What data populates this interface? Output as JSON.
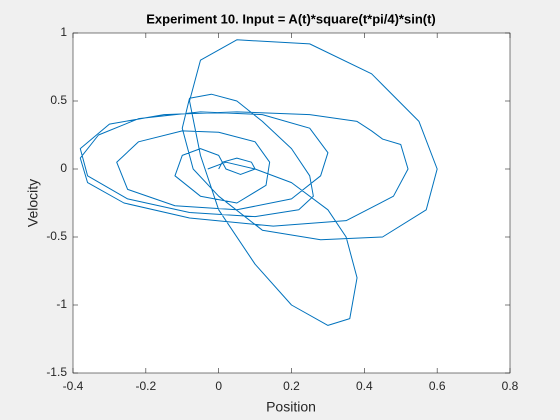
{
  "chart_data": {
    "type": "line",
    "title": "Experiment 10. Input = A(t)*square(t*pi/4)*sin(t)",
    "xlabel": "Position",
    "ylabel": "Velocity",
    "color": "#0072bd",
    "xlim": [
      -0.4,
      0.8
    ],
    "xticks": [
      -0.4,
      -0.2,
      0,
      0.2,
      0.4,
      0.6,
      0.8
    ],
    "ylim": [
      -1.5,
      1
    ],
    "yticks": [
      -1.5,
      -1,
      -0.5,
      0,
      0.5,
      1
    ],
    "x": [
      0,
      0.01,
      0.05,
      0.09,
      0.1,
      0.06,
      0.02,
      0,
      -0.05,
      -0.1,
      -0.12,
      -0.05,
      0.05,
      0.13,
      0.14,
      0.1,
      0.0,
      -0.1,
      -0.22,
      -0.28,
      -0.25,
      -0.12,
      0.05,
      0.2,
      0.28,
      0.3,
      0.25,
      0.12,
      -0.05,
      -0.22,
      -0.33,
      -0.38,
      -0.36,
      -0.26,
      -0.08,
      0.15,
      0.35,
      0.48,
      0.52,
      0.5,
      0.45,
      0.42,
      0.38,
      0.25,
      0.05,
      -0.15,
      -0.3,
      -0.38,
      -0.36,
      -0.25,
      -0.08,
      0.1,
      0.22,
      0.26,
      0.25,
      0.2,
      0.12,
      0.05,
      -0.02,
      -0.08,
      -0.1,
      -0.07,
      0.0,
      0.12,
      0.28,
      0.45,
      0.57,
      0.6,
      0.55,
      0.42,
      0.25,
      0.05,
      -0.05,
      -0.08,
      -0.05,
      0.0,
      0.1,
      0.2,
      0.3,
      0.36,
      0.38,
      0.35,
      0.3,
      0.2,
      0.1,
      0.02,
      -0.03
    ],
    "values": [
      0,
      0.05,
      0.08,
      0.05,
      0.0,
      -0.04,
      0.0,
      0.1,
      0.15,
      0.1,
      -0.05,
      -0.2,
      -0.25,
      -0.12,
      0.05,
      0.2,
      0.27,
      0.28,
      0.2,
      0.05,
      -0.15,
      -0.27,
      -0.3,
      -0.22,
      -0.05,
      0.12,
      0.3,
      0.4,
      0.42,
      0.37,
      0.25,
      0.08,
      -0.1,
      -0.25,
      -0.36,
      -0.42,
      -0.38,
      -0.2,
      0.0,
      0.18,
      0.22,
      0.28,
      0.35,
      0.4,
      0.42,
      0.4,
      0.33,
      0.15,
      -0.05,
      -0.22,
      -0.32,
      -0.35,
      -0.3,
      -0.2,
      -0.05,
      0.15,
      0.35,
      0.5,
      0.55,
      0.52,
      0.3,
      0.0,
      -0.2,
      -0.45,
      -0.52,
      -0.5,
      -0.3,
      0.0,
      0.35,
      0.7,
      0.92,
      0.95,
      0.8,
      0.5,
      0.1,
      -0.3,
      -0.7,
      -1.0,
      -1.15,
      -1.1,
      -0.8,
      -0.5,
      -0.3,
      -0.1,
      0.0,
      0.05,
      0.0
    ]
  }
}
